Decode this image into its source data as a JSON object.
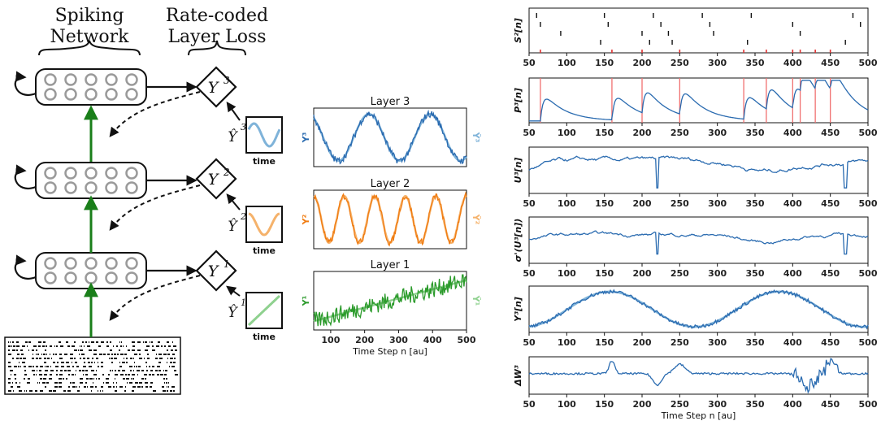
{
  "diagram": {
    "header_left": [
      "Spiking",
      "Network"
    ],
    "header_right": [
      "Rate-coded",
      "Layer Loss"
    ],
    "loss_nodes": [
      {
        "base": "Y",
        "sup": "3",
        "hat_sup": "3",
        "kind": "sine"
      },
      {
        "base": "Y",
        "sup": "2",
        "hat_sup": "2",
        "kind": "sine2"
      },
      {
        "base": "Y",
        "sup": "1",
        "hat_sup": "1",
        "kind": "ramp"
      }
    ],
    "target_box_label": "time",
    "colors": {
      "arrow_green": "#1a7f1a",
      "neuron_grey": "#9a9a9a"
    }
  },
  "chart_data": [
    {
      "type": "line",
      "title": "Layer 3",
      "y_left_label": "Y³",
      "y_right_label": "Ŷ³",
      "color": "#2a6bb0",
      "target_color": "#7fb3d9",
      "pattern": "sine",
      "periods": 2.5,
      "x": [
        50,
        500
      ]
    },
    {
      "type": "line",
      "title": "Layer 2",
      "y_left_label": "Y²",
      "y_right_label": "Ŷ²",
      "color": "#f07c12",
      "target_color": "#f5b26b",
      "pattern": "sine",
      "periods": 5,
      "x": [
        50,
        500
      ]
    },
    {
      "type": "line",
      "title": "Layer 1",
      "y_left_label": "Y¹",
      "y_right_label": "Ŷ¹",
      "color": "#2a9a2a",
      "target_color": "#8fd18f",
      "pattern": "ramp",
      "xticks": [
        "100",
        "200",
        "300",
        "400",
        "500"
      ],
      "xlabel": "Time Step n [au]",
      "x": [
        50,
        500
      ]
    },
    {
      "type": "raster",
      "ylabel": "S²[n]",
      "xlim": [
        50,
        500
      ],
      "xticks": [
        "50",
        "100",
        "150",
        "200",
        "250",
        "300",
        "350",
        "400",
        "450",
        "500"
      ],
      "spike_times": [
        60,
        65,
        92,
        145,
        150,
        155,
        200,
        210,
        215,
        225,
        235,
        240,
        280,
        290,
        295,
        340,
        345,
        400,
        410,
        470,
        480,
        490
      ],
      "red_marks": [
        65,
        160,
        200,
        250,
        335,
        365,
        400,
        410,
        430,
        450
      ]
    },
    {
      "type": "line",
      "ylabel": "P³[n]",
      "xlim": [
        50,
        500
      ],
      "xticks": [
        "50",
        "100",
        "150",
        "200",
        "250",
        "300",
        "350",
        "400",
        "450",
        "500"
      ],
      "spike_times": [
        65,
        160,
        200,
        250,
        335,
        365,
        400,
        410,
        430,
        450
      ],
      "color": "#2a6bb0",
      "pattern": "psp"
    },
    {
      "type": "line",
      "ylabel": "U³[n]",
      "xlim": [
        50,
        500
      ],
      "xticks": [
        "50",
        "100",
        "150",
        "200",
        "250",
        "300",
        "350",
        "400",
        "450",
        "500"
      ],
      "color": "#2a6bb0",
      "pattern": "membrane"
    },
    {
      "type": "line",
      "ylabel": "σ'(U³[n])",
      "xlim": [
        50,
        500
      ],
      "xticks": [
        "50",
        "100",
        "150",
        "200",
        "250",
        "300",
        "350",
        "400",
        "450",
        "500"
      ],
      "color": "#2a6bb0",
      "pattern": "surrogate"
    },
    {
      "type": "line",
      "ylabel": "Y³[n]",
      "xlim": [
        50,
        500
      ],
      "xticks": [
        "50",
        "100",
        "150",
        "200",
        "250",
        "300",
        "350",
        "400",
        "450",
        "500"
      ],
      "color": "#2a6bb0",
      "target_color": "#7fb3d9",
      "pattern": "rate"
    },
    {
      "type": "line",
      "ylabel": "ΔW³",
      "xlim": [
        50,
        500
      ],
      "xticks": [
        "50",
        "100",
        "150",
        "200",
        "250",
        "300",
        "350",
        "400",
        "450",
        "500"
      ],
      "xlabel": "Time Step n [au]",
      "color": "#2a6bb0",
      "pattern": "dw"
    }
  ]
}
